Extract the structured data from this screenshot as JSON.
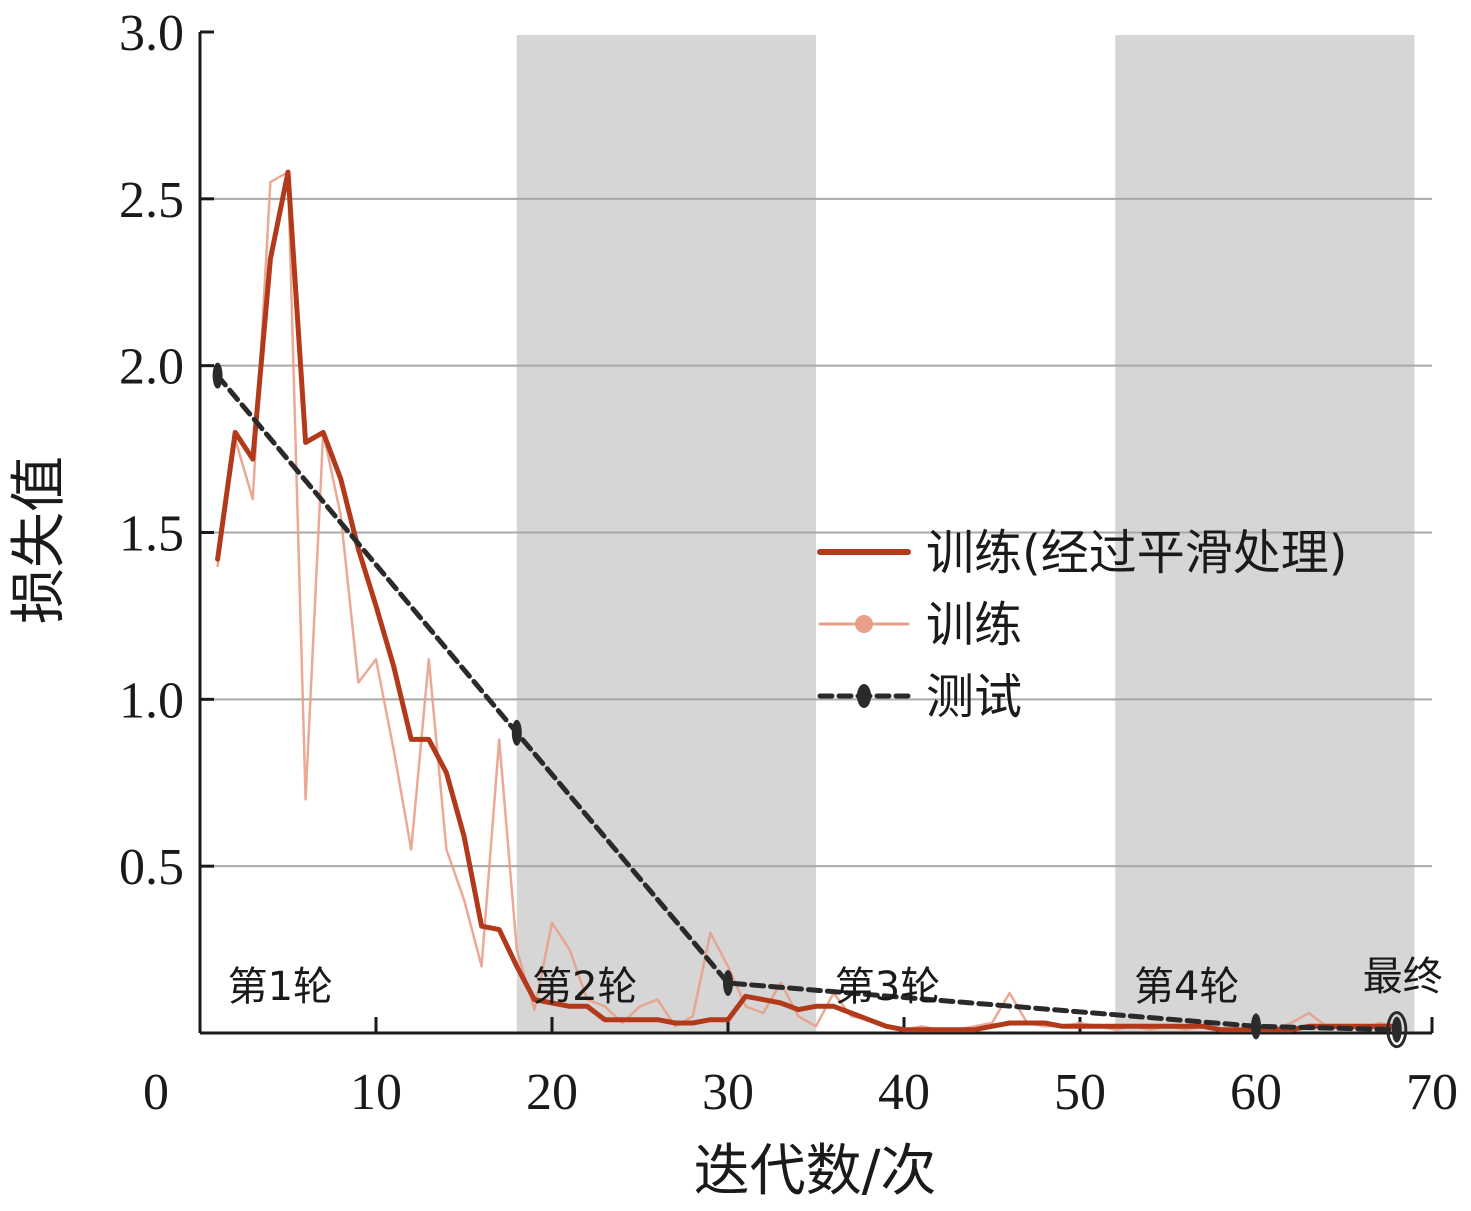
{
  "chart_data": {
    "type": "line",
    "xlabel": "迭代数/次",
    "ylabel": "损失值",
    "xlim": [
      0,
      70
    ],
    "ylim": [
      0,
      3.0
    ],
    "x_ticks": [
      "0",
      "10",
      "20",
      "30",
      "40",
      "50",
      "60",
      "70"
    ],
    "y_ticks": [
      "0.5",
      "1.0",
      "1.5",
      "2.0",
      "2.5",
      "3.0"
    ],
    "grid": "horizontal",
    "legend_position": "right",
    "shaded_bands": [
      [
        18,
        35
      ],
      [
        52,
        69
      ]
    ],
    "epoch_labels": [
      {
        "text": "第1轮",
        "x": 1
      },
      {
        "text": "第2轮",
        "x": 18.3
      },
      {
        "text": "第3轮",
        "x": 35.5
      },
      {
        "text": "第4轮",
        "x": 52.5
      },
      {
        "text": "最终",
        "x": 65.5
      }
    ],
    "series": [
      {
        "name": "训练",
        "color": "#e8a08a",
        "x": [
          1,
          2,
          3,
          4,
          5,
          6,
          7,
          8,
          9,
          10,
          11,
          12,
          13,
          14,
          15,
          16,
          17,
          18,
          19,
          20,
          21,
          22,
          23,
          24,
          25,
          26,
          27,
          28,
          29,
          30,
          31,
          32,
          33,
          34,
          35,
          36,
          37,
          38,
          39,
          40,
          41,
          42,
          43,
          44,
          45,
          46,
          47,
          48,
          49,
          50,
          51,
          52,
          53,
          54,
          55,
          56,
          57,
          58,
          59,
          60,
          61,
          62,
          63,
          64,
          65,
          66,
          67,
          68
        ],
        "y": [
          1.4,
          1.78,
          1.6,
          2.55,
          2.58,
          0.7,
          1.8,
          1.55,
          1.05,
          1.12,
          0.85,
          0.55,
          1.12,
          0.55,
          0.4,
          0.2,
          0.88,
          0.25,
          0.07,
          0.33,
          0.25,
          0.1,
          0.08,
          0.03,
          0.08,
          0.1,
          0.02,
          0.05,
          0.3,
          0.2,
          0.08,
          0.06,
          0.15,
          0.05,
          0.02,
          0.12,
          0.05,
          0.04,
          0.02,
          0.01,
          0.02,
          0.01,
          0.01,
          0.02,
          0.03,
          0.12,
          0.03,
          0.02,
          0.02,
          0.03,
          0.02,
          0.01,
          0.02,
          0.01,
          0.02,
          0.01,
          0.02,
          0.01,
          0.01,
          0.02,
          0.01,
          0.03,
          0.06,
          0.02,
          0.02,
          0.01,
          0.03,
          0.02
        ]
      },
      {
        "name": "训练(经过平滑处理)",
        "color": "#b23a1b",
        "x": [
          1,
          2,
          3,
          4,
          5,
          6,
          7,
          8,
          9,
          10,
          11,
          12,
          13,
          14,
          15,
          16,
          17,
          18,
          19,
          20,
          21,
          22,
          23,
          24,
          25,
          26,
          27,
          28,
          29,
          30,
          31,
          32,
          33,
          34,
          35,
          36,
          37,
          38,
          39,
          40,
          41,
          42,
          43,
          44,
          45,
          46,
          47,
          48,
          49,
          50,
          51,
          52,
          53,
          54,
          55,
          56,
          57,
          58,
          59,
          60,
          61,
          62,
          63,
          64,
          65,
          66,
          67,
          68
        ],
        "y": [
          1.42,
          1.8,
          1.72,
          2.32,
          2.58,
          1.77,
          1.8,
          1.66,
          1.45,
          1.28,
          1.1,
          0.88,
          0.88,
          0.78,
          0.59,
          0.32,
          0.31,
          0.2,
          0.1,
          0.09,
          0.08,
          0.08,
          0.04,
          0.04,
          0.04,
          0.04,
          0.03,
          0.03,
          0.04,
          0.04,
          0.11,
          0.1,
          0.09,
          0.07,
          0.08,
          0.08,
          0.06,
          0.04,
          0.02,
          0.01,
          0.01,
          0.01,
          0.01,
          0.01,
          0.02,
          0.03,
          0.03,
          0.03,
          0.02,
          0.02,
          0.02,
          0.02,
          0.02,
          0.02,
          0.02,
          0.02,
          0.02,
          0.01,
          0.01,
          0.01,
          0.01,
          0.01,
          0.02,
          0.02,
          0.02,
          0.02,
          0.02,
          0.02
        ]
      },
      {
        "name": "测试",
        "color": "#2a2a2a",
        "x": [
          1,
          18,
          30,
          60,
          68
        ],
        "y": [
          1.97,
          0.9,
          0.15,
          0.02,
          0.01
        ]
      }
    ]
  }
}
